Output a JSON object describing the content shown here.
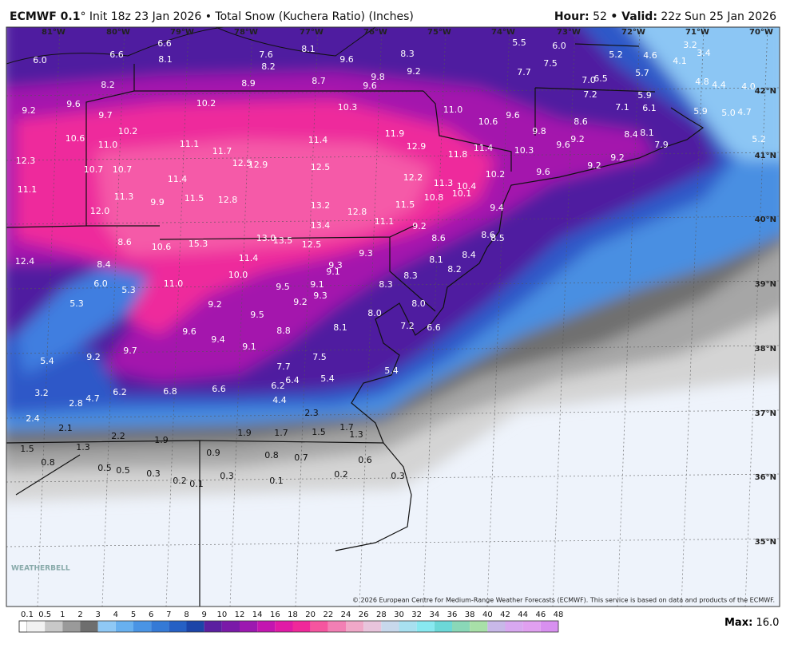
{
  "header": {
    "model": "ECMWF 0.1",
    "init": "° Init 18z 23 Jan 2026 • Total Snow (Kuchera Ratio) (Inches)",
    "hour_label": "Hour:",
    "hour": "52",
    "valid_label": "• Valid:",
    "valid": "22z Sun 25 Jan 2026"
  },
  "map": {
    "longitudes": [
      "81°W",
      "80°W",
      "79°W",
      "78°W",
      "77°W",
      "76°W",
      "75°W",
      "74°W",
      "73°W",
      "72°W",
      "71°W",
      "70°W"
    ],
    "latitudes": [
      "42°N",
      "41°N",
      "40°N",
      "39°N",
      "38°N",
      "37°N",
      "36°N",
      "35°N"
    ],
    "labels": [
      "6.6",
      "6.0",
      "6.6",
      "8.1",
      "7.6",
      "8.1",
      "8.2",
      "9.6",
      "8.3",
      "5.5",
      "6.0",
      "3.2",
      "3.4",
      "5.2",
      "4.6",
      "4.1",
      "7.5",
      "7.7",
      "9.2",
      "9.8",
      "8.7",
      "8.9",
      "9.6",
      "8.2",
      "5.7",
      "7.0",
      "6.5",
      "4.8",
      "4.4",
      "4.0",
      "7.2",
      "5.9",
      "9.2",
      "9.6",
      "10.2",
      "10.3",
      "11.0",
      "7.1",
      "6.1",
      "5.9",
      "5.0",
      "4.7",
      "9.7",
      "10.6",
      "9.6",
      "8.6",
      "10.2",
      "9.8",
      "8.4",
      "8.1",
      "10.6",
      "11.0",
      "11.1",
      "11.4",
      "11.9",
      "12.9",
      "9.2",
      "9.6",
      "7.9",
      "5.2",
      "12.3",
      "11.7",
      "11.8",
      "11.4",
      "10.3",
      "9.2",
      "12.5",
      "12.9",
      "12.5",
      "10.7",
      "10.7",
      "9.2",
      "9.6",
      "11.4",
      "12.2",
      "10.2",
      "11.3",
      "10.4",
      "11.1",
      "11.3",
      "11.5",
      "12.8",
      "10.8",
      "10.1",
      "9.9",
      "13.2",
      "12.8",
      "11.5",
      "9.4",
      "12.0",
      "13.4",
      "11.1",
      "9.2",
      "13.0",
      "13.5",
      "12.5",
      "8.6",
      "10.6",
      "15.3",
      "8.6",
      "8.6",
      "8.5",
      "9.3",
      "11.4",
      "12.4",
      "8.4",
      "8.4",
      "8.1",
      "9.3",
      "8.3",
      "8.2",
      "10.0",
      "9.1",
      "6.0",
      "11.0",
      "8.3",
      "9.5",
      "9.1",
      "5.3",
      "9.3",
      "9.2",
      "9.2",
      "5.3",
      "8.0",
      "9.5",
      "8.0",
      "8.1",
      "7.2",
      "6.6",
      "9.6",
      "8.8",
      "9.4",
      "9.1",
      "9.7",
      "9.2",
      "7.5",
      "5.4",
      "7.7",
      "5.4",
      "6.4",
      "5.4",
      "6.2",
      "6.8",
      "6.6",
      "6.2",
      "3.2",
      "4.7",
      "2.8",
      "4.4",
      "2.3",
      "2.4",
      "2.1",
      "1.7",
      "1.9",
      "1.7",
      "1.5",
      "1.3",
      "2.2",
      "1.9",
      "1.5",
      "1.3",
      "0.9",
      "0.8",
      "0.7",
      "0.6",
      "0.8",
      "0.5",
      "0.5",
      "0.3",
      "0.2",
      "0.1",
      "0.3",
      "0.1",
      "0.2",
      "0.3"
    ],
    "copyright": "© 2026 European Centre for Medium-Range Weather Forecasts (ECMWF). This service is based on data and products of the ECMWF.",
    "logo": "WEATHERBELL"
  },
  "colorbar": {
    "ticks": [
      "0.1",
      "0.5",
      "1",
      "2",
      "3",
      "4",
      "5",
      "6",
      "7",
      "8",
      "9",
      "10",
      "12",
      "14",
      "16",
      "18",
      "20",
      "22",
      "24",
      "26",
      "28",
      "30",
      "32",
      "34",
      "36",
      "38",
      "40",
      "42",
      "44",
      "46",
      "48"
    ],
    "colors": [
      "#f2f2f2",
      "#c8c8c8",
      "#9a9a9a",
      "#6e6e6e",
      "#8fc8f5",
      "#68b0ef",
      "#4a94e4",
      "#357ad6",
      "#2660c4",
      "#1c44a8",
      "#5b1fa0",
      "#7a1aa8",
      "#9c18b0",
      "#c316b0",
      "#e01aa6",
      "#f0289a",
      "#f5559f",
      "#f27fb4",
      "#f0a8c8",
      "#e8c4dc",
      "#c8d8ec",
      "#a8e0f0",
      "#88e8f0",
      "#6cd8d8",
      "#8ad8b8",
      "#a8e0a8",
      "#c8b8e8",
      "#d8a8f0",
      "#e0a0f0",
      "#d890f0"
    ],
    "max_label": "Max:",
    "max": "16.0"
  }
}
